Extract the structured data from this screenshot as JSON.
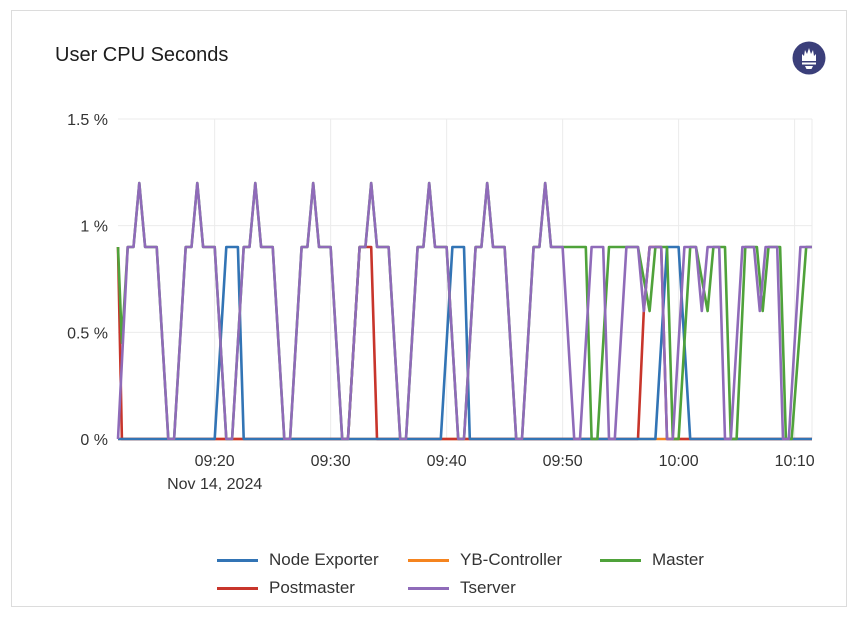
{
  "panel": {
    "title": "User CPU Seconds",
    "logo_icon": "prometheus-icon"
  },
  "chart_data": {
    "type": "line",
    "title": "User CPU Seconds",
    "xlabel": "",
    "ylabel": "",
    "x_date_label": "Nov 14, 2024",
    "xlim": [
      "09:11:40",
      "10:11:30"
    ],
    "ylim": [
      0,
      1.5
    ],
    "y_ticks": [
      0,
      0.5,
      1,
      1.5
    ],
    "y_tick_labels": [
      "0 %",
      "0.5 %",
      "1 %",
      "1.5 %"
    ],
    "x_ticks": [
      "09:20:00",
      "09:30:00",
      "09:40:00",
      "09:50:00",
      "10:00:00",
      "10:10:00"
    ],
    "x_tick_labels": [
      "09:20",
      "09:30",
      "09:40",
      "09:50",
      "10:00",
      "10:10"
    ],
    "grid": true,
    "legend_position": "bottom",
    "series": [
      {
        "name": "Node Exporter",
        "color": "#3274b5",
        "points": [
          [
            "09:11:40",
            0
          ],
          [
            "09:20:00",
            0
          ],
          [
            "09:21:00",
            0.9
          ],
          [
            "09:22:00",
            0.9
          ],
          [
            "09:22:30",
            0
          ],
          [
            "09:39:30",
            0
          ],
          [
            "09:40:30",
            0.9
          ],
          [
            "09:41:30",
            0.9
          ],
          [
            "09:42:00",
            0
          ],
          [
            "09:58:00",
            0
          ],
          [
            "09:59:00",
            0.9
          ],
          [
            "10:00:00",
            0.9
          ],
          [
            "10:01:00",
            0
          ],
          [
            "10:11:30",
            0
          ]
        ]
      },
      {
        "name": "YB-Controller",
        "color": "#f5841f",
        "points": [
          [
            "09:11:40",
            0
          ],
          [
            "10:11:30",
            0
          ]
        ]
      },
      {
        "name": "Master",
        "color": "#4fa23a",
        "points": [
          [
            "09:11:40",
            0.9
          ],
          [
            "09:12:00",
            0.45
          ],
          [
            "09:12:30",
            0.9
          ],
          [
            "09:13:00",
            0.9
          ],
          [
            "09:13:30",
            1.2
          ],
          [
            "09:14:00",
            0.9
          ],
          [
            "09:15:00",
            0.9
          ],
          [
            "09:16:00",
            0
          ],
          [
            "09:16:30",
            0
          ],
          [
            "09:17:30",
            0.9
          ],
          [
            "09:18:00",
            0.9
          ],
          [
            "09:18:30",
            1.2
          ],
          [
            "09:19:00",
            0.9
          ],
          [
            "09:20:00",
            0.9
          ],
          [
            "09:21:00",
            0
          ],
          [
            "09:21:30",
            0
          ],
          [
            "09:22:30",
            0.9
          ],
          [
            "09:23:00",
            0.9
          ],
          [
            "09:23:30",
            1.2
          ],
          [
            "09:24:00",
            0.9
          ],
          [
            "09:25:00",
            0.9
          ],
          [
            "09:26:00",
            0
          ],
          [
            "09:26:30",
            0
          ],
          [
            "09:27:30",
            0.9
          ],
          [
            "09:28:00",
            0.9
          ],
          [
            "09:28:30",
            1.2
          ],
          [
            "09:29:00",
            0.9
          ],
          [
            "09:30:00",
            0.9
          ],
          [
            "09:31:00",
            0
          ],
          [
            "09:31:30",
            0
          ],
          [
            "09:32:30",
            0.9
          ],
          [
            "09:33:00",
            0.9
          ],
          [
            "09:33:30",
            1.2
          ],
          [
            "09:34:00",
            0.9
          ],
          [
            "09:35:00",
            0.9
          ],
          [
            "09:36:00",
            0
          ],
          [
            "09:36:30",
            0
          ],
          [
            "09:37:30",
            0.9
          ],
          [
            "09:38:00",
            0.9
          ],
          [
            "09:38:30",
            1.2
          ],
          [
            "09:39:00",
            0.9
          ],
          [
            "09:40:00",
            0.9
          ],
          [
            "09:41:00",
            0
          ],
          [
            "09:41:30",
            0
          ],
          [
            "09:42:30",
            0.9
          ],
          [
            "09:43:00",
            0.9
          ],
          [
            "09:43:30",
            1.2
          ],
          [
            "09:44:00",
            0.9
          ],
          [
            "09:45:00",
            0.9
          ],
          [
            "09:46:00",
            0
          ],
          [
            "09:46:30",
            0
          ],
          [
            "09:47:30",
            0.9
          ],
          [
            "09:48:00",
            0.9
          ],
          [
            "09:48:30",
            1.2
          ],
          [
            "09:49:00",
            0.9
          ],
          [
            "09:50:00",
            0.9
          ],
          [
            "09:52:00",
            0.9
          ],
          [
            "09:52:30",
            0
          ],
          [
            "09:53:00",
            0
          ],
          [
            "09:54:00",
            0.9
          ],
          [
            "09:56:30",
            0.9
          ],
          [
            "09:57:30",
            0.6
          ],
          [
            "09:58:00",
            0.9
          ],
          [
            "09:59:00",
            0.9
          ],
          [
            "09:59:30",
            0
          ],
          [
            "10:00:00",
            0
          ],
          [
            "10:01:00",
            0.9
          ],
          [
            "10:01:30",
            0.9
          ],
          [
            "10:02:30",
            0.6
          ],
          [
            "10:03:00",
            0.9
          ],
          [
            "10:04:00",
            0.9
          ],
          [
            "10:04:30",
            0
          ],
          [
            "10:05:00",
            0
          ],
          [
            "10:05:45",
            0.9
          ],
          [
            "10:06:45",
            0.9
          ],
          [
            "10:07:15",
            0.6
          ],
          [
            "10:07:45",
            0.9
          ],
          [
            "10:08:45",
            0.9
          ],
          [
            "10:09:15",
            0
          ],
          [
            "10:09:45",
            0
          ],
          [
            "10:11:00",
            0.9
          ],
          [
            "10:11:30",
            0.9
          ]
        ]
      },
      {
        "name": "Postmaster",
        "color": "#c8352b",
        "points": [
          [
            "09:11:40",
            0.9
          ],
          [
            "09:12:00",
            0
          ],
          [
            "09:31:30",
            0
          ],
          [
            "09:32:30",
            0.9
          ],
          [
            "09:33:30",
            0.9
          ],
          [
            "09:34:00",
            0
          ],
          [
            "09:56:30",
            0
          ],
          [
            "09:57:00",
            0.6
          ],
          [
            "09:57:30",
            0.9
          ],
          [
            "09:58:30",
            0.9
          ],
          [
            "09:59:00",
            0
          ],
          [
            "10:11:30",
            0
          ]
        ]
      },
      {
        "name": "Tserver",
        "color": "#8f6bb9",
        "points": [
          [
            "09:11:40",
            0
          ],
          [
            "09:12:30",
            0.9
          ],
          [
            "09:13:00",
            0.9
          ],
          [
            "09:13:30",
            1.2
          ],
          [
            "09:14:00",
            0.9
          ],
          [
            "09:15:00",
            0.9
          ],
          [
            "09:16:00",
            0
          ],
          [
            "09:16:30",
            0
          ],
          [
            "09:17:30",
            0.9
          ],
          [
            "09:18:00",
            0.9
          ],
          [
            "09:18:30",
            1.2
          ],
          [
            "09:19:00",
            0.9
          ],
          [
            "09:20:00",
            0.9
          ],
          [
            "09:21:00",
            0
          ],
          [
            "09:21:30",
            0
          ],
          [
            "09:22:30",
            0.9
          ],
          [
            "09:23:00",
            0.9
          ],
          [
            "09:23:30",
            1.2
          ],
          [
            "09:24:00",
            0.9
          ],
          [
            "09:25:00",
            0.9
          ],
          [
            "09:26:00",
            0
          ],
          [
            "09:26:30",
            0
          ],
          [
            "09:27:30",
            0.9
          ],
          [
            "09:28:00",
            0.9
          ],
          [
            "09:28:30",
            1.2
          ],
          [
            "09:29:00",
            0.9
          ],
          [
            "09:30:00",
            0.9
          ],
          [
            "09:31:00",
            0
          ],
          [
            "09:31:30",
            0
          ],
          [
            "09:32:30",
            0.9
          ],
          [
            "09:33:00",
            0.9
          ],
          [
            "09:33:30",
            1.2
          ],
          [
            "09:34:00",
            0.9
          ],
          [
            "09:35:00",
            0.9
          ],
          [
            "09:36:00",
            0
          ],
          [
            "09:36:30",
            0
          ],
          [
            "09:37:30",
            0.9
          ],
          [
            "09:38:00",
            0.9
          ],
          [
            "09:38:30",
            1.2
          ],
          [
            "09:39:00",
            0.9
          ],
          [
            "09:40:00",
            0.9
          ],
          [
            "09:41:00",
            0
          ],
          [
            "09:41:30",
            0
          ],
          [
            "09:42:30",
            0.9
          ],
          [
            "09:43:00",
            0.9
          ],
          [
            "09:43:30",
            1.2
          ],
          [
            "09:44:00",
            0.9
          ],
          [
            "09:45:00",
            0.9
          ],
          [
            "09:46:00",
            0
          ],
          [
            "09:46:30",
            0
          ],
          [
            "09:47:30",
            0.9
          ],
          [
            "09:48:00",
            0.9
          ],
          [
            "09:48:30",
            1.2
          ],
          [
            "09:49:00",
            0.9
          ],
          [
            "09:50:00",
            0.9
          ],
          [
            "09:51:00",
            0
          ],
          [
            "09:51:30",
            0
          ],
          [
            "09:52:30",
            0.9
          ],
          [
            "09:53:30",
            0.9
          ],
          [
            "09:54:00",
            0
          ],
          [
            "09:54:30",
            0
          ],
          [
            "09:55:30",
            0.9
          ],
          [
            "09:56:30",
            0.9
          ],
          [
            "09:57:00",
            0.6
          ],
          [
            "09:57:30",
            0.9
          ],
          [
            "09:58:30",
            0.9
          ],
          [
            "09:59:00",
            0
          ],
          [
            "09:59:30",
            0
          ],
          [
            "10:00:30",
            0.9
          ],
          [
            "10:01:30",
            0.9
          ],
          [
            "10:02:00",
            0.6
          ],
          [
            "10:02:30",
            0.9
          ],
          [
            "10:03:30",
            0.9
          ],
          [
            "10:04:00",
            0
          ],
          [
            "10:04:30",
            0
          ],
          [
            "10:05:30",
            0.9
          ],
          [
            "10:06:30",
            0.9
          ],
          [
            "10:07:00",
            0.6
          ],
          [
            "10:07:30",
            0.9
          ],
          [
            "10:08:30",
            0.9
          ],
          [
            "10:09:00",
            0
          ],
          [
            "10:09:30",
            0
          ],
          [
            "10:10:30",
            0.9
          ],
          [
            "10:11:30",
            0.9
          ]
        ]
      }
    ],
    "legend_order": [
      [
        "Node Exporter",
        "YB-Controller",
        "Master"
      ],
      [
        "Postmaster",
        "Tserver"
      ]
    ]
  }
}
